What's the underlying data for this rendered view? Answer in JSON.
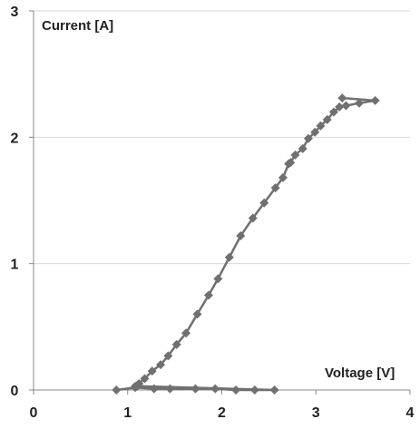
{
  "chart_data": {
    "type": "scatter",
    "xlabel": "Voltage [V]",
    "ylabel": "Current [A]",
    "xlim": [
      0,
      4
    ],
    "ylim": [
      0,
      3
    ],
    "x_ticks": [
      "0",
      "1",
      "2",
      "3",
      "4"
    ],
    "y_ticks": [
      "0",
      "1",
      "2",
      "3"
    ],
    "grid": "horizontal",
    "marker": "diamond",
    "colors": {
      "series": "#707070",
      "grid": "#d9d9d9",
      "axis": "#888888"
    },
    "series": [
      {
        "x": [
          0.88,
          1.08,
          1.28,
          1.45,
          1.72,
          1.93,
          2.15,
          2.35,
          2.56,
          1.1,
          1.08,
          1.12,
          1.18,
          1.26,
          1.35,
          1.43,
          1.52,
          1.62,
          1.74,
          1.86,
          1.96,
          2.08,
          2.2,
          2.33,
          2.45,
          2.57,
          2.65,
          2.71,
          2.73,
          2.78,
          2.86,
          2.92,
          2.99,
          3.05,
          3.12,
          3.19,
          3.25,
          3.32,
          3.46,
          3.63,
          3.28
        ],
        "y": [
          0.0,
          0.02,
          0.01,
          0.01,
          0.01,
          0.01,
          0.0,
          0.0,
          0.0,
          0.03,
          0.03,
          0.05,
          0.09,
          0.15,
          0.2,
          0.27,
          0.36,
          0.45,
          0.6,
          0.75,
          0.88,
          1.05,
          1.22,
          1.36,
          1.48,
          1.6,
          1.68,
          1.79,
          1.8,
          1.86,
          1.91,
          1.99,
          2.04,
          2.09,
          2.14,
          2.2,
          2.24,
          2.25,
          2.27,
          2.29,
          2.31
        ]
      }
    ]
  }
}
